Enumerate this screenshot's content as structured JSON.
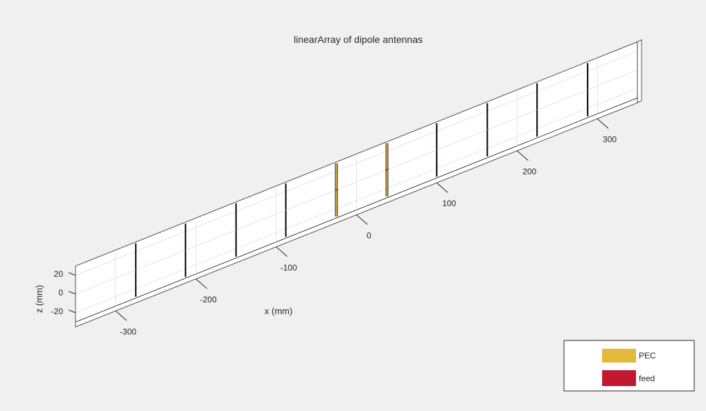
{
  "chart_data": {
    "type": "3d-array-plot",
    "title": "linearArray of dipole antennas",
    "xlabel": "x (mm)",
    "zlabel": "z (mm)",
    "x_ticks": [
      -300,
      -200,
      -100,
      0,
      100,
      200,
      300
    ],
    "z_ticks": [
      20,
      0,
      -20
    ],
    "xlim": [
      -350,
      350
    ],
    "zlim": [
      -30,
      30
    ],
    "elements": [
      {
        "x": -275,
        "length": 57,
        "material": "PEC"
      },
      {
        "x": -213,
        "length": 57,
        "material": "PEC"
      },
      {
        "x": -150,
        "length": 57,
        "material": "PEC"
      },
      {
        "x": -88,
        "length": 57,
        "material": "PEC"
      },
      {
        "x": -25,
        "length": 57,
        "material": "PEC"
      },
      {
        "x": 38,
        "length": 57,
        "material": "PEC"
      },
      {
        "x": 100,
        "length": 57,
        "material": "PEC"
      },
      {
        "x": 163,
        "length": 57,
        "material": "PEC"
      },
      {
        "x": 225,
        "length": 57,
        "material": "PEC"
      },
      {
        "x": 288,
        "length": 57,
        "material": "PEC"
      }
    ],
    "legend": {
      "placement": "bottom-right",
      "entries": [
        {
          "label": "PEC",
          "color": "#e3b93e"
        },
        {
          "label": "feed",
          "color": "#c11a30"
        }
      ]
    },
    "colors": {
      "background": "#f0f0f0",
      "axes_face": "#ffffff",
      "grid": "#dcdcdc",
      "element": "#000000",
      "highlight": "#e3b93e"
    }
  }
}
